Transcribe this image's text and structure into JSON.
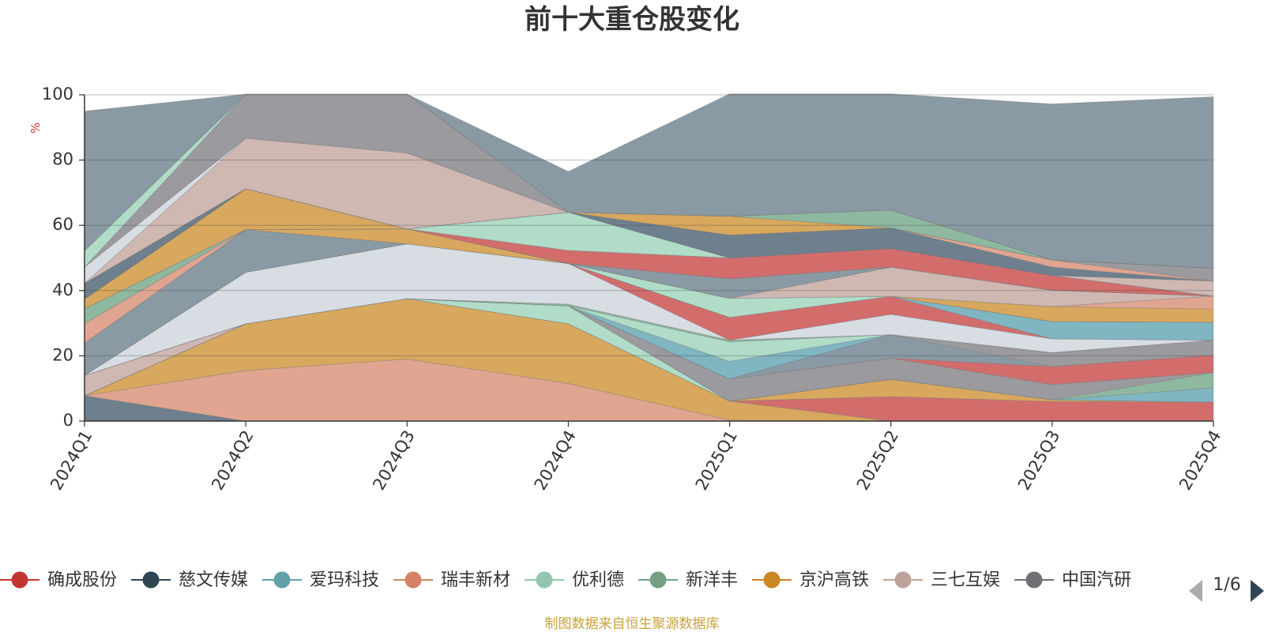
{
  "chart_data": {
    "type": "area",
    "stacked": true,
    "title": "前十大重仓股变化",
    "ylabel": "%",
    "ylim": [
      0,
      100
    ],
    "yticks": [
      0,
      20,
      40,
      60,
      80,
      100
    ],
    "grid": true,
    "legend_position": "bottom",
    "x": [
      "2024Q1",
      "2024Q2",
      "2024Q3",
      "2024Q4",
      "2025Q1",
      "2025Q2",
      "2025Q3",
      "2025Q4"
    ],
    "series": [
      {
        "name": "",
        "color": "#6e7f8d",
        "values": [
          7.8,
          0,
          0,
          0,
          0,
          0,
          0,
          0
        ]
      },
      {
        "name": "",
        "color": "#e0a590",
        "values": [
          0,
          15.5,
          19.0,
          11.5,
          0.3,
          0,
          0,
          0
        ]
      },
      {
        "name": "",
        "color": "#d8a85e",
        "values": [
          0,
          14.3,
          18.5,
          18.3,
          5.8,
          0,
          0,
          0
        ]
      },
      {
        "name": "",
        "color": "#d26d6c",
        "values": [
          0,
          0,
          0,
          0,
          0,
          7.5,
          6.0,
          5.8
        ]
      },
      {
        "name": "",
        "color": "#d8a85e",
        "values": [
          0,
          0,
          0,
          0,
          0,
          5.3,
          0.5,
          0
        ]
      },
      {
        "name": "",
        "color": "#b0dcc8",
        "values": [
          0,
          0,
          0,
          5.5,
          0,
          0,
          0,
          0
        ]
      },
      {
        "name": "",
        "color": "#7fb6c2",
        "values": [
          0,
          0,
          0,
          0,
          0,
          0,
          0,
          4.4
        ]
      },
      {
        "name": "",
        "color": "#8fb8a0",
        "values": [
          0,
          0,
          0,
          0,
          0,
          0,
          0,
          4.7
        ]
      },
      {
        "name": "",
        "color": "#9b9a9e",
        "values": [
          0,
          0,
          0,
          0,
          6.8,
          6.5,
          4.7,
          0
        ]
      },
      {
        "name": "",
        "color": "#cfb8b2",
        "values": [
          6.2,
          0,
          0,
          0,
          0,
          0,
          0,
          0
        ]
      },
      {
        "name": "",
        "color": "#d26d6c",
        "values": [
          0,
          0,
          0,
          0,
          0,
          0,
          5.5,
          5.3
        ]
      },
      {
        "name": "",
        "color": "#8a9aa4",
        "values": [
          0,
          0,
          0,
          0,
          0,
          7.2,
          0,
          0
        ]
      },
      {
        "name": "",
        "color": "#9b9a9e",
        "values": [
          0,
          0,
          0,
          0,
          0,
          0,
          4.3,
          4.6
        ]
      },
      {
        "name": "",
        "color": "#7fb6c2",
        "values": [
          0,
          0,
          0,
          0,
          5.4,
          0,
          0,
          0
        ]
      },
      {
        "name": "",
        "color": "#b0dcc8",
        "values": [
          0,
          0,
          0,
          0,
          6.0,
          0,
          0,
          0
        ]
      },
      {
        "name": "",
        "color": "#8fb8a0",
        "values": [
          0,
          0,
          0,
          0.5,
          0.5,
          0,
          0,
          0
        ]
      },
      {
        "name": "",
        "color": "#d8dde4",
        "values": [
          0,
          15.8,
          16.8,
          12.5,
          0,
          6.2,
          4.2,
          0
        ]
      },
      {
        "name": "",
        "color": "#d26d6c",
        "values": [
          0,
          0,
          0,
          0,
          7.0,
          5.5,
          0,
          0
        ]
      },
      {
        "name": "",
        "color": "#7fb6c2",
        "values": [
          0,
          0,
          0,
          0,
          0,
          0,
          5.3,
          5.5
        ]
      },
      {
        "name": "",
        "color": "#8a9aa4",
        "values": [
          9.9,
          13.1,
          0,
          0,
          0,
          0,
          0,
          0
        ]
      },
      {
        "name": "",
        "color": "#b0dcc8",
        "values": [
          0,
          0,
          0,
          0,
          5.8,
          0,
          0,
          0
        ]
      },
      {
        "name": "",
        "color": "#d8a85e",
        "values": [
          0,
          0,
          4.6,
          0,
          0,
          0,
          4.6,
          4.0
        ]
      },
      {
        "name": "",
        "color": "#e0a590",
        "values": [
          6.0,
          0,
          0,
          0,
          0,
          0,
          0,
          4.0
        ]
      },
      {
        "name": "",
        "color": "#cfb8b2",
        "values": [
          0,
          0,
          0,
          0,
          0,
          9.0,
          5.0,
          0
        ]
      },
      {
        "name": "",
        "color": "#8fb8a0",
        "values": [
          4.5,
          0,
          0,
          0,
          0,
          0,
          0,
          0
        ]
      },
      {
        "name": "",
        "color": "#8a9aa4",
        "values": [
          0,
          0,
          0,
          0,
          6.0,
          0,
          0,
          0
        ]
      },
      {
        "name": "",
        "color": "#d8a85e",
        "values": [
          3.0,
          12.5,
          0,
          0,
          0,
          0,
          0,
          0
        ]
      },
      {
        "name": "",
        "color": "#d26d6c",
        "values": [
          0,
          0,
          0,
          4.0,
          6.4,
          5.7,
          4.5,
          0
        ]
      },
      {
        "name": "",
        "color": "#b0dcc8",
        "values": [
          0,
          0,
          0,
          11.7,
          0,
          0,
          0,
          0
        ]
      },
      {
        "name": "",
        "color": "#6e7f8d",
        "values": [
          0,
          0,
          0,
          0,
          0,
          0,
          0,
          0
        ]
      },
      {
        "name": "",
        "color": "#7fb6c2",
        "values": [
          0,
          0,
          0,
          0,
          0,
          0,
          0,
          0
        ]
      },
      {
        "name": "",
        "color": "#cfb8b2",
        "values": [
          0,
          0,
          0,
          0,
          0,
          0,
          0,
          4.6
        ]
      },
      {
        "name": "",
        "color": "#6e7f8d",
        "values": [
          4.8,
          0,
          0,
          0,
          7.0,
          6.3,
          2.6,
          0
        ]
      },
      {
        "name": "",
        "color": "#e0a590",
        "values": [
          0,
          0,
          0,
          0,
          0,
          0,
          2.2,
          0
        ]
      },
      {
        "name": "",
        "color": "#9b9a9e",
        "values": [
          0,
          0,
          0,
          0,
          0,
          0,
          0,
          4.0
        ]
      },
      {
        "name": "",
        "color": "#b0dcc8",
        "values": [
          0,
          0,
          0,
          0,
          0,
          0,
          0,
          0
        ]
      },
      {
        "name": "",
        "color": "#d8a85e",
        "values": [
          0,
          0,
          0,
          0,
          5.8,
          0,
          0,
          0
        ]
      },
      {
        "name": "",
        "color": "#8fb8a0",
        "values": [
          0,
          0,
          0,
          0,
          0,
          5.5,
          0,
          0
        ]
      },
      {
        "name": "",
        "color": "#cfb8b2",
        "values": [
          0,
          15.5,
          23.3,
          0,
          0,
          0,
          0,
          0
        ]
      },
      {
        "name": "",
        "color": "#d8dde4",
        "values": [
          5.0,
          0,
          0,
          0,
          0,
          0,
          0,
          0
        ]
      },
      {
        "name": "",
        "color": "#9b9a9e",
        "values": [
          0,
          13.5,
          18.0,
          0,
          0,
          0,
          0,
          0
        ]
      },
      {
        "name": "",
        "color": "#b0dcc8",
        "values": [
          5.0,
          0,
          0,
          0,
          0,
          0,
          0,
          0
        ]
      },
      {
        "name": "",
        "color": "#7fb6c2",
        "values": [
          0,
          0,
          0,
          0,
          0,
          0,
          0,
          0
        ]
      },
      {
        "name": "",
        "color": "#8a9aa4",
        "values": [
          42.8,
          0,
          0,
          12.5,
          37.5,
          35.6,
          47.8,
          52.5
        ]
      }
    ]
  },
  "legend": {
    "items": [
      {
        "label": "确成股份",
        "color": "#c23531"
      },
      {
        "label": "慈文传媒",
        "color": "#2f4554"
      },
      {
        "label": "爱玛科技",
        "color": "#61a0a8"
      },
      {
        "label": "瑞丰新材",
        "color": "#d48265"
      },
      {
        "label": "优利德",
        "color": "#91c7ae"
      },
      {
        "label": "新洋丰",
        "color": "#749f83"
      },
      {
        "label": "京沪高铁",
        "color": "#ca8622"
      },
      {
        "label": "三七互娱",
        "color": "#bda29a"
      },
      {
        "label": "中国汽研",
        "color": "#6e7074"
      }
    ],
    "page": "1/6"
  },
  "source": "制图数据来自恒生聚源数据库"
}
